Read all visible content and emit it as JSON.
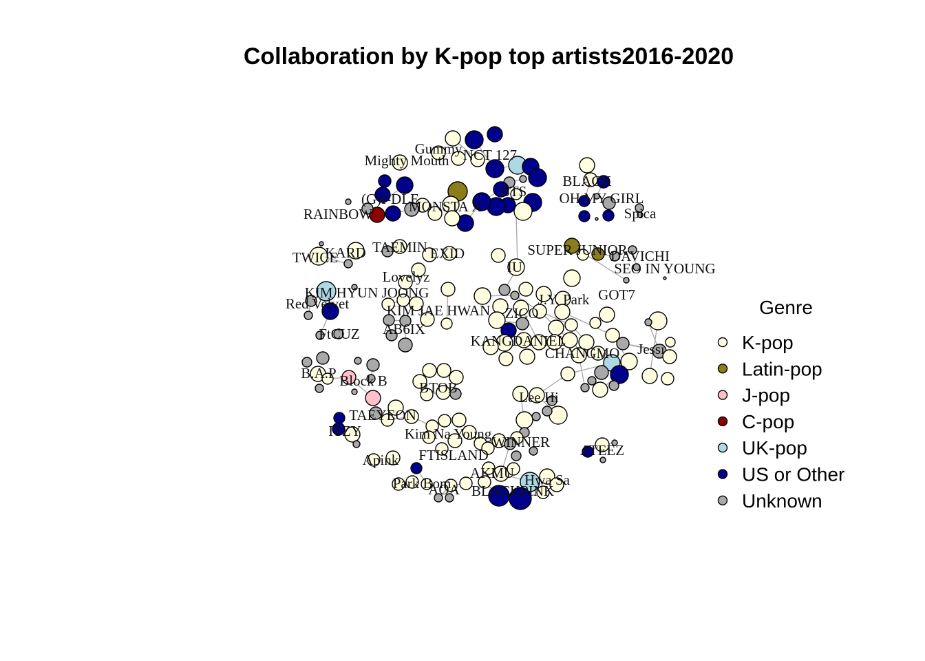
{
  "title": "Collaboration by K-pop top artists2016-2020",
  "legend": {
    "title": "Genre",
    "items": [
      {
        "label": "K-pop",
        "color": "#fffee0"
      },
      {
        "label": "Latin-pop",
        "color": "#8b7d1a"
      },
      {
        "label": "J-pop",
        "color": "#ffc0cb"
      },
      {
        "label": "C-pop",
        "color": "#8b0000"
      },
      {
        "label": "UK-pop",
        "color": "#add8e6"
      },
      {
        "label": "US or Other",
        "color": "#00008b"
      },
      {
        "label": "Unknown",
        "color": "#a9a9a9"
      }
    ]
  },
  "labels": [
    "Gummy",
    "NCT 127",
    "Mighty Mouth",
    "BTS",
    "(G)I-DLE",
    "MONSTA X",
    "OH MY GIRL",
    "RAINBOW",
    "BLACK",
    "Spica",
    "TWICE",
    "KARD",
    "TAEMIN",
    "EXID",
    "SUPER JUNIOR",
    "DAVICHI",
    "IU",
    "SEO IN YOUNG",
    "Lovelyz",
    "KIM HYUN JOONG",
    "Red Velvet",
    "KIM JAE HWAN",
    "ZICO",
    "J.Y. Park",
    "GOT7",
    "AB6IX",
    "FtCUZ",
    "KANGDANIEL",
    "CHANGMO",
    "Jessi",
    "B.A.P",
    "Block B",
    "BTOB",
    "Lee Hi",
    "TAEYEON",
    "ITZY",
    "Kim Na Young",
    "WINNER",
    "ATEEZ",
    "FTISLAND",
    "Apink",
    "AKMU",
    "Hwa Sa",
    "Park Bom",
    "AOA",
    "BLACKPINK"
  ]
}
